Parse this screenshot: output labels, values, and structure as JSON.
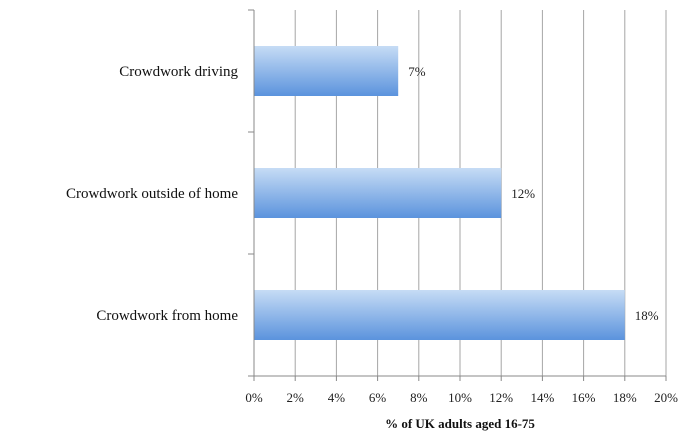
{
  "chart_data": {
    "type": "bar",
    "orientation": "horizontal",
    "categories": [
      "Crowdwork driving",
      "Crowdwork outside of home",
      "Crowdwork from home"
    ],
    "values": [
      7,
      12,
      18
    ],
    "data_labels": [
      "7%",
      "12%",
      "18%"
    ],
    "xlabel": "% of UK adults aged 16-75",
    "xlim": [
      0,
      20
    ],
    "xticks": [
      0,
      2,
      4,
      6,
      8,
      10,
      12,
      14,
      16,
      18,
      20
    ],
    "xtick_labels": [
      "0%",
      "2%",
      "4%",
      "6%",
      "8%",
      "10%",
      "12%",
      "14%",
      "16%",
      "18%",
      "20%"
    ],
    "grid": "vertical",
    "legend": "none",
    "colors": {
      "bar_top": "#c6dcf5",
      "bar_bottom": "#5b93dd",
      "grid": "#a6a6a6",
      "axis": "#888888"
    }
  }
}
